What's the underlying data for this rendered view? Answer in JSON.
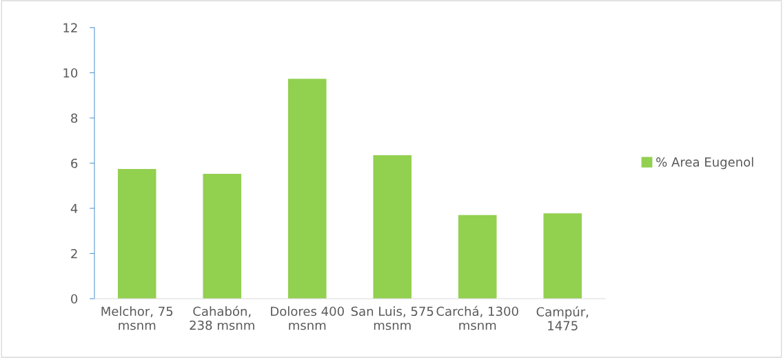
{
  "chart_data": {
    "type": "bar",
    "categories": [
      "Melchor, 75\nmsnm",
      "Cahabón,\n238 msnm",
      "Dolores 400\nmsnm",
      "San Luis, 575\nmsnm",
      "Carchá, 1300\nmsnm",
      "Campúr,\n1475"
    ],
    "series": [
      {
        "name": "% Area Eugenol",
        "color": "#92d050",
        "values": [
          5.74,
          5.53,
          9.73,
          6.35,
          3.7,
          3.78
        ]
      }
    ],
    "ylim": [
      0,
      12
    ],
    "yticks": [
      0,
      2,
      4,
      6,
      8,
      10,
      12
    ],
    "grid": false,
    "legend": "right"
  }
}
